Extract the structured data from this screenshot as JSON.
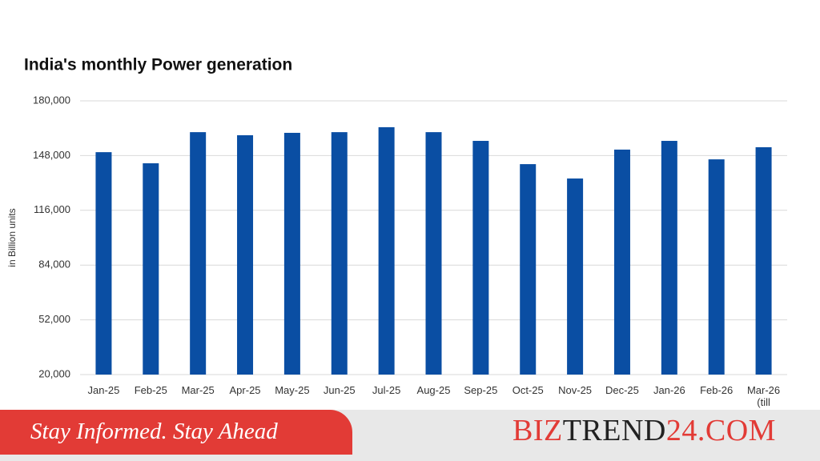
{
  "chart_data": {
    "type": "bar",
    "title": "India's monthly Power generation",
    "y_label": "in Billion units",
    "categories": [
      "Jan-25",
      "Feb-25",
      "Mar-25",
      "Apr-25",
      "May-25",
      "Jun-25",
      "Jul-25",
      "Aug-25",
      "Sep-25",
      "Oct-25",
      "Nov-25",
      "Dec-25",
      "Jan-26",
      "Feb-26",
      "Mar-26\n(till"
    ],
    "values": [
      150000,
      143500,
      161700,
      159900,
      161300,
      161700,
      164600,
      161700,
      156600,
      143000,
      134600,
      151500,
      156600,
      145800,
      152900
    ],
    "color": "#0a4ea3",
    "ylim": [
      20000,
      180000
    ],
    "yticks": [
      {
        "value": 20000,
        "label": "20,000"
      },
      {
        "value": 52000,
        "label": "52,000"
      },
      {
        "value": 84000,
        "label": "84,000"
      },
      {
        "value": 116000,
        "label": "116,000"
      },
      {
        "value": 148000,
        "label": "148,000"
      },
      {
        "value": 180000,
        "label": "180,000"
      }
    ],
    "grid": true
  },
  "footer": {
    "tagline": "Stay Informed. Stay Ahead",
    "brand_parts": [
      "BIZ",
      "TREND",
      "24.COM"
    ]
  }
}
